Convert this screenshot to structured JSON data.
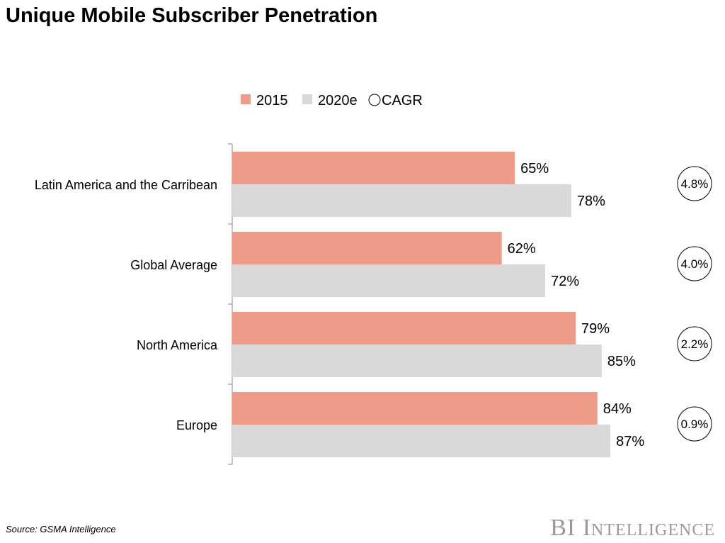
{
  "chart_data": {
    "type": "bar",
    "orientation": "horizontal",
    "title": "Unique Mobile Subscriber Penetration",
    "categories": [
      "Latin America and the Carribean",
      "Global Average",
      "North America",
      "Europe"
    ],
    "series": [
      {
        "name": "2015",
        "values": [
          65,
          62,
          79,
          84
        ],
        "labels": [
          "65%",
          "62%",
          "79%",
          "84%"
        ],
        "color": "#EE9B87"
      },
      {
        "name": "2020e",
        "values": [
          78,
          72,
          85,
          87
        ],
        "labels": [
          "78%",
          "72%",
          "85%",
          "87%"
        ],
        "color": "#D9D9D9"
      }
    ],
    "cagr": {
      "name": "CAGR",
      "values": [
        "4.8%",
        "4.0%",
        "2.2%",
        "0.9%"
      ]
    },
    "xlim": [
      0,
      100
    ],
    "grid": false,
    "legend": "top"
  },
  "source": "Source: GSMA Intelligence",
  "logo": "BI Intelligence"
}
